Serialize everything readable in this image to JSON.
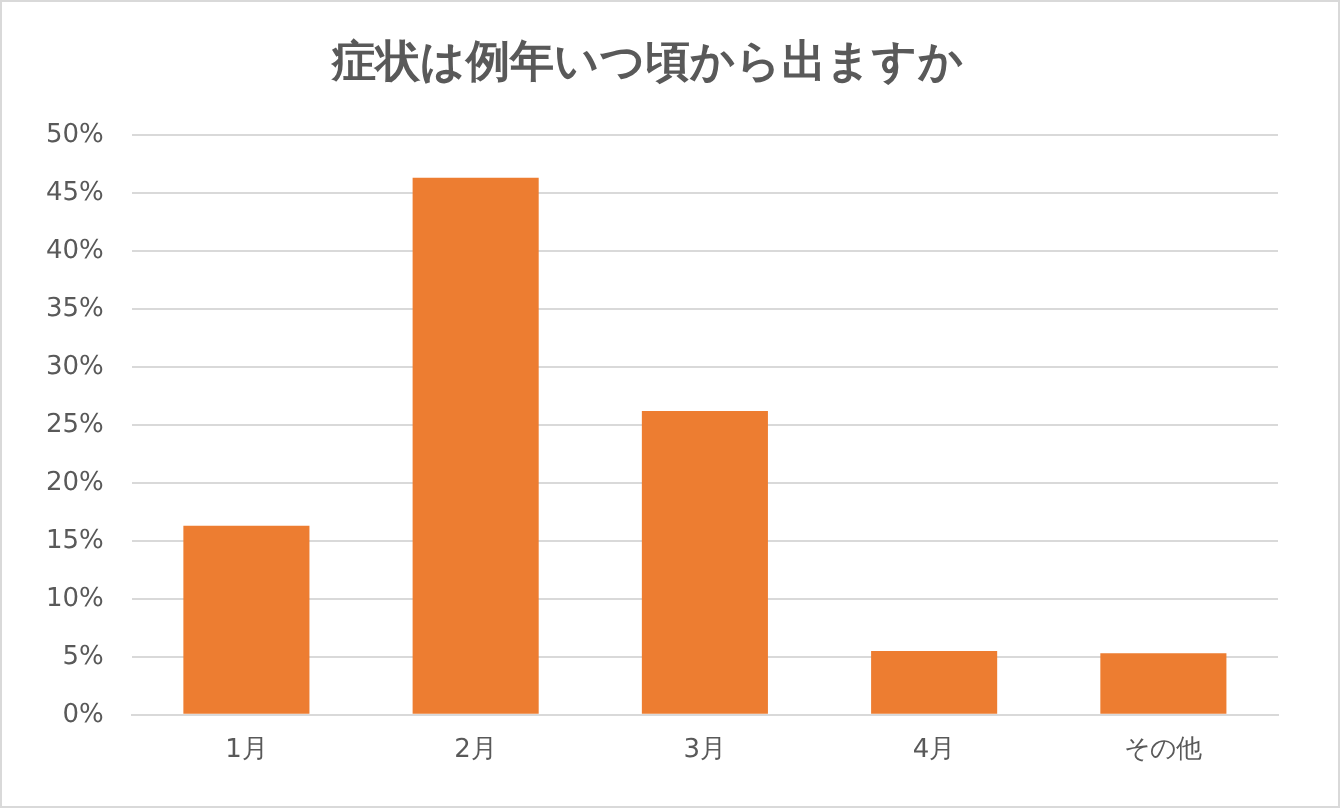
{
  "chart_data": {
    "type": "bar",
    "title": "症状は例年いつ頃から出ますか",
    "categories": [
      "1月",
      "2月",
      "3月",
      "4月",
      "その他"
    ],
    "values": [
      16.3,
      46.3,
      26.2,
      5.5,
      5.3
    ],
    "color": "#ed7d31",
    "ylim": [
      0,
      50
    ],
    "yticks": [
      {
        "value": 0,
        "label": "0%"
      },
      {
        "value": 5,
        "label": "5%"
      },
      {
        "value": 10,
        "label": "10%"
      },
      {
        "value": 15,
        "label": "15%"
      },
      {
        "value": 20,
        "label": "20%"
      },
      {
        "value": 25,
        "label": "25%"
      },
      {
        "value": 30,
        "label": "30%"
      },
      {
        "value": 35,
        "label": "35%"
      },
      {
        "value": 40,
        "label": "40%"
      },
      {
        "value": 45,
        "label": "45%"
      },
      {
        "value": 50,
        "label": "50%"
      }
    ],
    "grid": "y",
    "legend": false
  }
}
